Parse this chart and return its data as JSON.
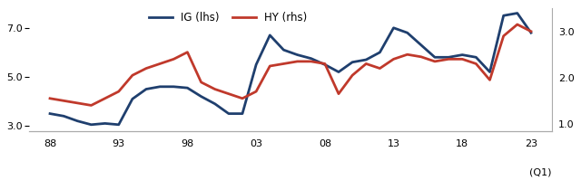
{
  "ig_x": [
    88,
    89,
    90,
    91,
    92,
    93,
    94,
    95,
    96,
    97,
    98,
    99,
    100,
    101,
    102,
    103,
    104,
    105,
    106,
    107,
    108,
    109,
    110,
    111,
    112,
    113,
    114,
    115,
    116,
    117,
    118,
    119,
    120,
    121,
    122,
    123
  ],
  "ig_values": [
    3.5,
    3.4,
    3.2,
    3.05,
    3.1,
    3.05,
    4.1,
    4.5,
    4.6,
    4.6,
    4.55,
    4.2,
    3.9,
    3.5,
    3.5,
    5.5,
    6.7,
    6.1,
    5.9,
    5.75,
    5.5,
    5.2,
    5.6,
    5.7,
    6.0,
    7.0,
    6.8,
    6.3,
    5.8,
    5.8,
    5.9,
    5.8,
    5.2,
    7.5,
    7.6,
    6.8
  ],
  "hy_x": [
    88,
    89,
    90,
    91,
    92,
    93,
    94,
    95,
    96,
    97,
    98,
    99,
    100,
    101,
    102,
    103,
    104,
    105,
    106,
    107,
    108,
    109,
    110,
    111,
    112,
    113,
    114,
    115,
    116,
    117,
    118,
    119,
    120,
    121,
    122,
    123
  ],
  "hy_values": [
    1.55,
    1.5,
    1.45,
    1.4,
    1.55,
    1.7,
    2.05,
    2.2,
    2.3,
    2.4,
    2.55,
    1.9,
    1.75,
    1.65,
    1.55,
    1.7,
    2.25,
    2.3,
    2.35,
    2.35,
    2.3,
    1.65,
    2.05,
    2.3,
    2.2,
    2.4,
    2.5,
    2.45,
    2.35,
    2.4,
    2.4,
    2.3,
    1.95,
    2.9,
    3.15,
    3.0
  ],
  "ig_color": "#1f3f6e",
  "hy_color": "#c0392b",
  "lhs_ylim": [
    2.8,
    7.8
  ],
  "rhs_ylim": [
    0.85,
    3.5
  ],
  "lhs_yticks": [
    3.0,
    5.0,
    7.0
  ],
  "rhs_yticks": [
    1.0,
    2.0,
    3.0
  ],
  "xtick_positions": [
    88,
    93,
    98,
    103,
    108,
    113,
    118,
    123
  ],
  "xtick_labels": [
    "88",
    "93",
    "98",
    "03",
    "08",
    "13",
    "18",
    "23"
  ],
  "xlim": [
    86.5,
    124.5
  ],
  "linewidth": 2.0,
  "legend_ig": "IG (lhs)",
  "legend_hy": "HY (rhs)",
  "q1_label": "(Q1)"
}
